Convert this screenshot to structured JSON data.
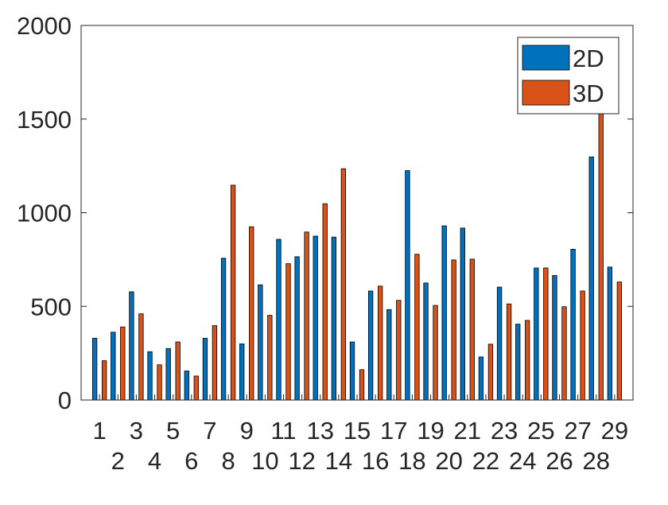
{
  "chart_data": {
    "type": "bar",
    "title": "",
    "xlabel": "",
    "ylabel": "",
    "categories": [
      "1",
      "2",
      "3",
      "4",
      "5",
      "6",
      "7",
      "8",
      "9",
      "10",
      "11",
      "12",
      "13",
      "14",
      "15",
      "16",
      "17",
      "18",
      "19",
      "20",
      "21",
      "22",
      "23",
      "24",
      "25",
      "26",
      "27",
      "28",
      "29"
    ],
    "series": [
      {
        "name": "2D",
        "color": "#0072BD",
        "values": [
          330,
          362,
          578,
          258,
          275,
          155,
          330,
          757,
          300,
          615,
          858,
          765,
          875,
          870,
          310,
          582,
          483,
          1225,
          625,
          930,
          918,
          230,
          603,
          405,
          705,
          665,
          805,
          1298,
          710
        ]
      },
      {
        "name": "3D",
        "color": "#D95319",
        "values": [
          210,
          390,
          460,
          188,
          310,
          128,
          397,
          1147,
          925,
          452,
          728,
          897,
          1048,
          1235,
          162,
          608,
          532,
          778,
          505,
          748,
          752,
          298,
          513,
          425,
          705,
          498,
          582,
          1555,
          630
        ]
      }
    ],
    "ylim": [
      0,
      2000
    ],
    "yticks": [
      0,
      500,
      1000,
      1500,
      2000
    ],
    "ytick_labels": [
      "0",
      "500",
      "1000",
      "1500",
      "2000"
    ],
    "grid": false,
    "legend_position": "top-right"
  }
}
